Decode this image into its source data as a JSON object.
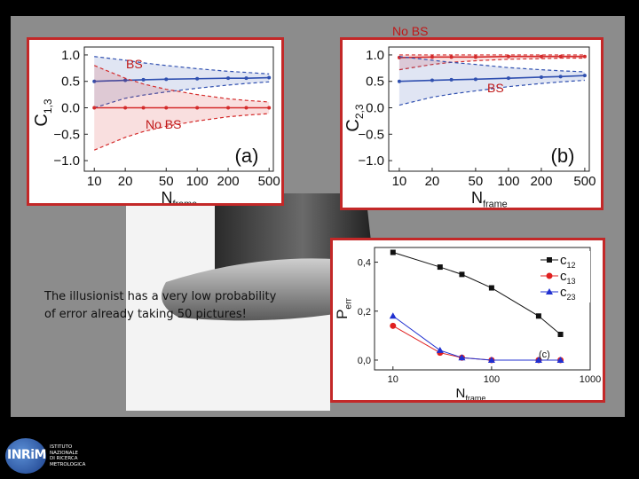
{
  "slide": {
    "annotations": {
      "top_no_bs": "No BS",
      "left_bs": "BS",
      "left_no_bs": "No BS",
      "right_bs": "BS"
    },
    "caption_lines": [
      "The illusionist has a very low probability",
      "of error already taking 50 pictures!"
    ],
    "logo": {
      "mark": "INRiM",
      "lines": [
        "ISTITUTO",
        "NAZIONALE",
        "DI RICERCA",
        "METROLOGICA"
      ]
    },
    "colors": {
      "panel": "#8c8c8c",
      "frame_red": "#c32828",
      "blue": "#3050b0",
      "red": "#d42b2b"
    }
  },
  "chart_data": [
    {
      "type": "line",
      "panel_label": "(a)",
      "ylabel": "C1,3",
      "ylabel_main": "C",
      "ylabel_sub": "1,3",
      "xlabel_main": "N",
      "xlabel_sub": "frame",
      "xscale": "log",
      "xlim": [
        8,
        550
      ],
      "ylim": [
        -1.2,
        1.15
      ],
      "xticks": [
        "10",
        "20",
        "50",
        "100",
        "200",
        "500"
      ],
      "xtick_values": [
        10,
        20,
        50,
        100,
        200,
        500
      ],
      "yticks": [
        "1.0",
        "0.5",
        "0.0",
        "−0.5",
        "−1.0"
      ],
      "ytick_values": [
        1.0,
        0.5,
        0.0,
        -0.5,
        -1.0
      ],
      "x": [
        10,
        20,
        30,
        50,
        100,
        200,
        300,
        500
      ],
      "series": [
        {
          "color": "#3050b0",
          "values": [
            0.5,
            0.52,
            0.53,
            0.54,
            0.55,
            0.56,
            0.56,
            0.57
          ],
          "band_upper": [
            0.97,
            0.9,
            0.85,
            0.8,
            0.74,
            0.69,
            0.67,
            0.64
          ],
          "band_lower": [
            0.0,
            0.18,
            0.24,
            0.3,
            0.37,
            0.43,
            0.46,
            0.49
          ]
        },
        {
          "color": "#d42b2b",
          "values": [
            0.0,
            0.0,
            0.0,
            0.0,
            0.0,
            0.0,
            0.0,
            0.0
          ],
          "band_upper": [
            0.8,
            0.56,
            0.45,
            0.35,
            0.25,
            0.17,
            0.14,
            0.11
          ],
          "band_lower": [
            -0.8,
            -0.56,
            -0.45,
            -0.35,
            -0.25,
            -0.17,
            -0.14,
            -0.11
          ]
        }
      ]
    },
    {
      "type": "line",
      "panel_label": "(b)",
      "ylabel": "C2,3",
      "ylabel_main": "C",
      "ylabel_sub": "2,3",
      "xlabel_main": "N",
      "xlabel_sub": "frame",
      "xscale": "log",
      "xlim": [
        8,
        550
      ],
      "ylim": [
        -1.2,
        1.15
      ],
      "xticks": [
        "10",
        "20",
        "50",
        "100",
        "200",
        "500"
      ],
      "xtick_values": [
        10,
        20,
        50,
        100,
        200,
        500
      ],
      "yticks": [
        "1.0",
        "0.5",
        "0.0",
        "−0.5",
        "−1.0"
      ],
      "ytick_values": [
        1.0,
        0.5,
        0.0,
        -0.5,
        -1.0
      ],
      "x": [
        10,
        20,
        30,
        50,
        100,
        200,
        300,
        500
      ],
      "series": [
        {
          "color": "#d42b2b",
          "values": [
            0.95,
            0.96,
            0.96,
            0.96,
            0.97,
            0.97,
            0.97,
            0.97
          ],
          "band_upper": [
            1.0,
            1.0,
            1.0,
            1.0,
            1.0,
            1.0,
            1.0,
            1.0
          ],
          "band_lower": [
            0.72,
            0.82,
            0.86,
            0.89,
            0.92,
            0.93,
            0.94,
            0.94
          ]
        },
        {
          "color": "#3050b0",
          "values": [
            0.5,
            0.52,
            0.53,
            0.54,
            0.56,
            0.58,
            0.59,
            0.61
          ],
          "band_upper": [
            0.97,
            0.9,
            0.86,
            0.82,
            0.76,
            0.72,
            0.7,
            0.68
          ],
          "band_lower": [
            0.05,
            0.2,
            0.26,
            0.32,
            0.4,
            0.46,
            0.49,
            0.52
          ]
        }
      ]
    },
    {
      "type": "line",
      "panel_label": "(c)",
      "ylabel": "Perr",
      "ylabel_main": "P",
      "ylabel_sub": "err",
      "xlabel_main": "N",
      "xlabel_sub": "frame",
      "xscale": "log",
      "xlim": [
        6.5,
        1000
      ],
      "ylim": [
        -0.04,
        0.46
      ],
      "xticks": [
        "10",
        "100",
        "1000"
      ],
      "xtick_values": [
        10,
        100,
        1000
      ],
      "yticks": [
        "0,4",
        "0,2",
        "0,0"
      ],
      "ytick_values": [
        0.4,
        0.2,
        0.0
      ],
      "legend_position": "top-right",
      "series": [
        {
          "name": "c12",
          "legend_main": "c",
          "legend_sub": "12",
          "color": "#111111",
          "marker": "square",
          "x": [
            10,
            30,
            50,
            100,
            300,
            500
          ],
          "values": [
            0.44,
            0.38,
            0.35,
            0.295,
            0.18,
            0.105
          ]
        },
        {
          "name": "c13",
          "legend_main": "c",
          "legend_sub": "13",
          "color": "#e02020",
          "marker": "circle",
          "x": [
            10,
            30,
            50,
            100,
            300,
            500
          ],
          "values": [
            0.14,
            0.03,
            0.01,
            0.0,
            0.0,
            0.0
          ]
        },
        {
          "name": "c23",
          "legend_main": "c",
          "legend_sub": "23",
          "color": "#2030d0",
          "marker": "triangle",
          "x": [
            10,
            30,
            50,
            100,
            300,
            500
          ],
          "values": [
            0.18,
            0.04,
            0.01,
            0.0,
            0.0,
            0.0
          ]
        }
      ]
    }
  ]
}
